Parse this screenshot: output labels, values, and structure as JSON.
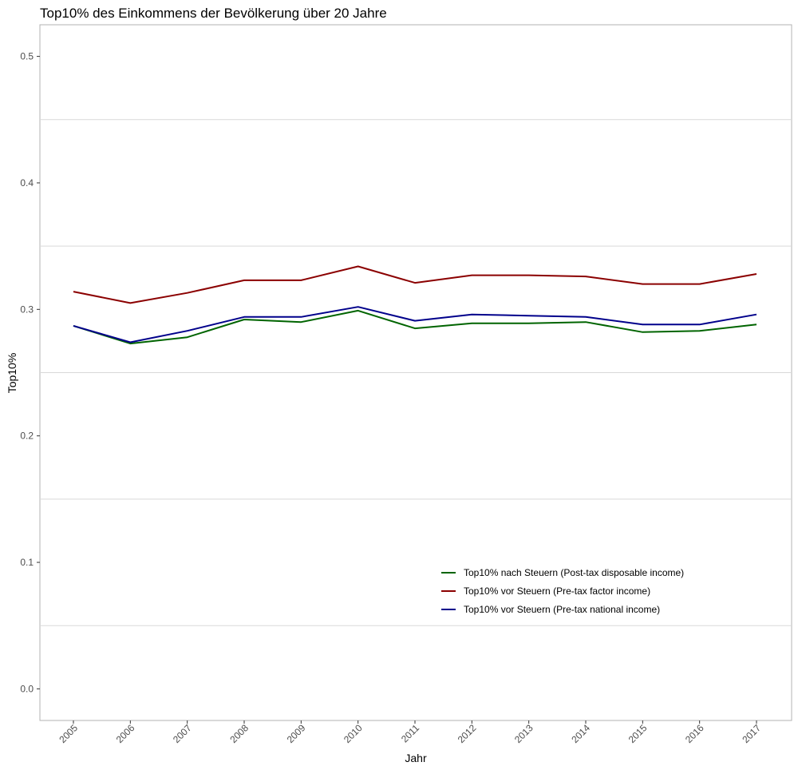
{
  "chart_data": {
    "type": "line",
    "title": "Top10%  des Einkommens der Bevölkerung über 20 Jahre",
    "xlabel": "Jahr",
    "ylabel": "Top10%",
    "x": [
      "2005",
      "2006",
      "2007",
      "2008",
      "2009",
      "2010",
      "2011",
      "2012",
      "2013",
      "2014",
      "2015",
      "2016",
      "2017"
    ],
    "ylim": [
      -0.025,
      0.525
    ],
    "yticks": [
      0.0,
      0.1,
      0.2,
      0.3,
      0.4,
      0.5
    ],
    "ytick_labels": [
      "0.0",
      "0.1",
      "0.2",
      "0.3",
      "0.4",
      "0.5"
    ],
    "grid": true,
    "legend_position": "bottom-right-inside",
    "series": [
      {
        "name": "Top10% nach Steuern (Post-tax disposable income)",
        "color": "#006400",
        "values": [
          0.287,
          0.273,
          0.278,
          0.292,
          0.29,
          0.299,
          0.285,
          0.289,
          0.289,
          0.29,
          0.282,
          0.283,
          0.288
        ]
      },
      {
        "name": "Top10% vor Steuern (Pre-tax factor income)",
        "color": "#8b0000",
        "values": [
          0.314,
          0.305,
          0.313,
          0.323,
          0.323,
          0.334,
          0.321,
          0.327,
          0.327,
          0.326,
          0.32,
          0.32,
          0.328
        ]
      },
      {
        "name": "Top10% vor Steuern (Pre-tax national income)",
        "color": "#00008b",
        "values": [
          0.287,
          0.274,
          0.283,
          0.294,
          0.294,
          0.302,
          0.291,
          0.296,
          0.295,
          0.294,
          0.288,
          0.288,
          0.296
        ]
      }
    ]
  }
}
